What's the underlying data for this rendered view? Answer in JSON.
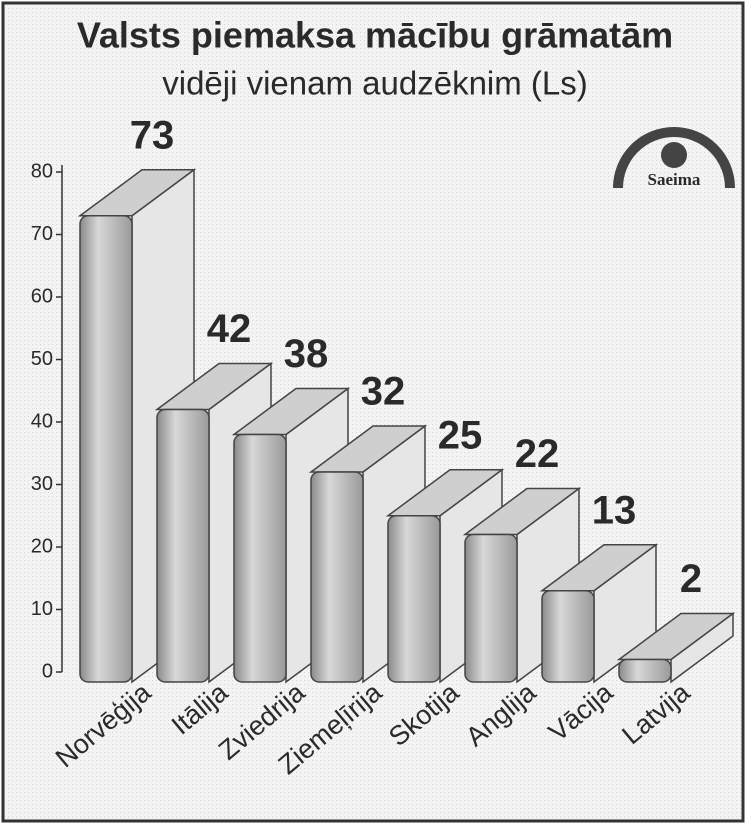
{
  "chart_data": {
    "type": "bar",
    "title": "Valsts piemaksa mācību grāmatām",
    "subtitle": "vidēji vienam audzēknim (Ls)",
    "logo": "Saeima",
    "categories": [
      "Norvēģija",
      "Itālija",
      "Zviedrija",
      "Ziemeļīrija",
      "Skotija",
      "Anglija",
      "Vācija",
      "Latvija"
    ],
    "values": [
      73,
      42,
      38,
      32,
      25,
      22,
      13,
      2
    ],
    "color": "#b8b8b8",
    "ylim": [
      0,
      80
    ],
    "yticks": [
      0,
      10,
      20,
      30,
      40,
      50,
      60,
      70,
      80
    ]
  }
}
